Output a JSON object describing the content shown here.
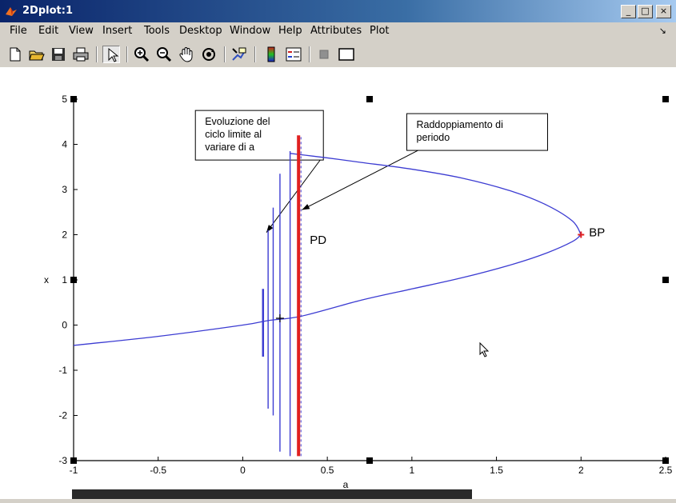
{
  "window": {
    "title": "2Dplot:1",
    "buttons": {
      "minimize": "_",
      "maximize": "□",
      "close": "×"
    }
  },
  "menu": [
    "File",
    "Edit",
    "View",
    "Insert",
    "Tools",
    "Desktop",
    "Window",
    "Help",
    "Attributes",
    "Plot"
  ],
  "dock_arrow": "↘",
  "toolbar": [
    "new-file-icon",
    "open-file-icon",
    "save-icon",
    "print-icon",
    "pointer-icon",
    "zoom-in-icon",
    "zoom-out-icon",
    "pan-hand-icon",
    "rotate-icon",
    "data-cursor-icon",
    "colorbar-icon",
    "legend-icon",
    "hide-tools-icon",
    "show-tools-icon"
  ],
  "colors": {
    "curve": "#3c3cd2",
    "pd_line": "#e02020",
    "bp_marker": "#e02020"
  },
  "chart_data": {
    "type": "line",
    "xlabel": "a",
    "ylabel": "x",
    "xlim": [
      -1,
      2.5
    ],
    "ylim": [
      -3,
      5
    ],
    "xticks": [
      "-1",
      "-0.5",
      "0",
      "0.5",
      "1",
      "1.5",
      "2",
      "2.5"
    ],
    "yticks": [
      "-3",
      "-2",
      "-1",
      "0",
      "1",
      "2",
      "3",
      "4",
      "5"
    ],
    "grid": false,
    "series": [
      {
        "kind": "equilibrium-branch",
        "x": [
          -1,
          -0.5,
          0.0,
          0.15,
          0.35,
          0.7,
          1.0,
          1.3,
          1.6,
          1.8,
          1.95,
          2.0
        ],
        "y": [
          -0.45,
          -0.25,
          0.0,
          0.1,
          0.2,
          0.55,
          0.8,
          1.05,
          1.35,
          1.6,
          1.85,
          2.0
        ]
      },
      {
        "kind": "equilibrium-branch",
        "x": [
          2.0,
          1.95,
          1.8,
          1.6,
          1.3,
          1.0,
          0.7,
          0.5,
          0.28
        ],
        "y": [
          2.0,
          2.3,
          2.65,
          2.95,
          3.25,
          3.45,
          3.6,
          3.7,
          3.8
        ]
      }
    ],
    "limit_cycles": [
      {
        "a": 0.12,
        "xmin": -0.7,
        "xmax": 0.8
      },
      {
        "a": 0.15,
        "xmin": -1.85,
        "xmax": 2.1
      },
      {
        "a": 0.18,
        "xmin": -2.0,
        "xmax": 2.6
      },
      {
        "a": 0.22,
        "xmin": -2.8,
        "xmax": 3.35
      },
      {
        "a": 0.28,
        "xmin": -2.9,
        "xmax": 3.85
      }
    ],
    "pd_line": {
      "a": 0.33,
      "ymin": -2.9,
      "ymax": 4.2,
      "label": "PD"
    },
    "bp_point": {
      "a": 2.0,
      "x": 2.0,
      "label": "BP"
    },
    "annotations": [
      {
        "text": [
          "Evoluzione del",
          "ciclo limite al",
          "variare di a"
        ],
        "box_a": -0.28,
        "box_x": 4.75,
        "arrow_to": [
          0.14,
          2.05
        ]
      },
      {
        "text": [
          "Raddoppiamento di",
          "periodo"
        ],
        "box_a": 0.97,
        "box_x": 4.68,
        "arrow_to": [
          0.35,
          2.55
        ]
      }
    ],
    "cursor_marker": {
      "a": 0.22,
      "x": 0.15
    }
  }
}
